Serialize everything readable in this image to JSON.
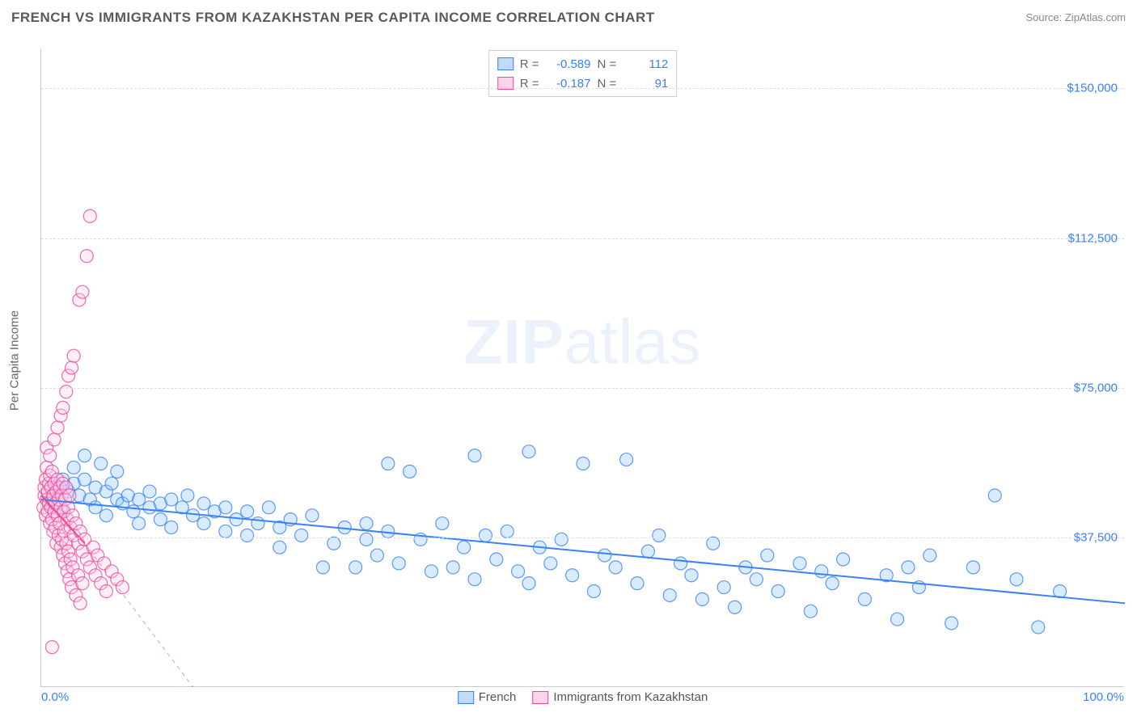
{
  "title": "FRENCH VS IMMIGRANTS FROM KAZAKHSTAN PER CAPITA INCOME CORRELATION CHART",
  "source": "Source: ZipAtlas.com",
  "ylabel": "Per Capita Income",
  "watermark_bold": "ZIP",
  "watermark_light": "atlas",
  "chart": {
    "type": "scatter",
    "xlim": [
      0,
      100
    ],
    "ylim": [
      0,
      160000
    ],
    "x_ticks": [
      {
        "v": 0,
        "label": "0.0%"
      },
      {
        "v": 100,
        "label": "100.0%"
      }
    ],
    "y_ticks": [
      {
        "v": 37500,
        "label": "$37,500"
      },
      {
        "v": 75000,
        "label": "$75,000"
      },
      {
        "v": 112500,
        "label": "$112,500"
      },
      {
        "v": 150000,
        "label": "$150,000"
      }
    ],
    "grid_color": "#dddddd",
    "axis_color": "#cccccc",
    "background_color": "#ffffff",
    "marker_radius": 8,
    "marker_opacity": 0.35,
    "series": [
      {
        "name": "French",
        "R": "-0.589",
        "N": "112",
        "fill": "#93c5fd",
        "stroke": "#3b82f6",
        "regression": {
          "x1": 0,
          "y1": 47000,
          "x2": 100,
          "y2": 21000,
          "width": 2,
          "dash": ""
        },
        "points": [
          [
            1,
            48000
          ],
          [
            1.5,
            50000
          ],
          [
            2,
            52000
          ],
          [
            2,
            44000
          ],
          [
            2.5,
            49000
          ],
          [
            3,
            51000
          ],
          [
            3,
            55000
          ],
          [
            3.5,
            48000
          ],
          [
            4,
            58000
          ],
          [
            4,
            52000
          ],
          [
            4.5,
            47000
          ],
          [
            5,
            50000
          ],
          [
            5,
            45000
          ],
          [
            5.5,
            56000
          ],
          [
            6,
            49000
          ],
          [
            6,
            43000
          ],
          [
            6.5,
            51000
          ],
          [
            7,
            47000
          ],
          [
            7,
            54000
          ],
          [
            7.5,
            46000
          ],
          [
            8,
            48000
          ],
          [
            8.5,
            44000
          ],
          [
            9,
            47000
          ],
          [
            9,
            41000
          ],
          [
            10,
            49000
          ],
          [
            10,
            45000
          ],
          [
            11,
            46000
          ],
          [
            11,
            42000
          ],
          [
            12,
            47000
          ],
          [
            12,
            40000
          ],
          [
            13,
            45000
          ],
          [
            13.5,
            48000
          ],
          [
            14,
            43000
          ],
          [
            15,
            46000
          ],
          [
            15,
            41000
          ],
          [
            16,
            44000
          ],
          [
            17,
            45000
          ],
          [
            17,
            39000
          ],
          [
            18,
            42000
          ],
          [
            19,
            44000
          ],
          [
            19,
            38000
          ],
          [
            20,
            41000
          ],
          [
            21,
            45000
          ],
          [
            22,
            40000
          ],
          [
            22,
            35000
          ],
          [
            23,
            42000
          ],
          [
            24,
            38000
          ],
          [
            25,
            43000
          ],
          [
            26,
            30000
          ],
          [
            27,
            36000
          ],
          [
            28,
            40000
          ],
          [
            29,
            30000
          ],
          [
            30,
            41000
          ],
          [
            30,
            37000
          ],
          [
            31,
            33000
          ],
          [
            32,
            56000
          ],
          [
            32,
            39000
          ],
          [
            33,
            31000
          ],
          [
            34,
            54000
          ],
          [
            35,
            37000
          ],
          [
            36,
            29000
          ],
          [
            37,
            41000
          ],
          [
            38,
            30000
          ],
          [
            39,
            35000
          ],
          [
            40,
            58000
          ],
          [
            40,
            27000
          ],
          [
            41,
            38000
          ],
          [
            42,
            32000
          ],
          [
            43,
            39000
          ],
          [
            44,
            29000
          ],
          [
            45,
            59000
          ],
          [
            45,
            26000
          ],
          [
            46,
            35000
          ],
          [
            47,
            31000
          ],
          [
            48,
            37000
          ],
          [
            49,
            28000
          ],
          [
            50,
            56000
          ],
          [
            51,
            24000
          ],
          [
            52,
            33000
          ],
          [
            53,
            30000
          ],
          [
            54,
            57000
          ],
          [
            55,
            26000
          ],
          [
            56,
            34000
          ],
          [
            57,
            38000
          ],
          [
            58,
            23000
          ],
          [
            59,
            31000
          ],
          [
            60,
            28000
          ],
          [
            61,
            22000
          ],
          [
            62,
            36000
          ],
          [
            63,
            25000
          ],
          [
            64,
            20000
          ],
          [
            65,
            30000
          ],
          [
            66,
            27000
          ],
          [
            67,
            33000
          ],
          [
            68,
            24000
          ],
          [
            70,
            31000
          ],
          [
            71,
            19000
          ],
          [
            72,
            29000
          ],
          [
            73,
            26000
          ],
          [
            74,
            32000
          ],
          [
            76,
            22000
          ],
          [
            78,
            28000
          ],
          [
            79,
            17000
          ],
          [
            80,
            30000
          ],
          [
            81,
            25000
          ],
          [
            82,
            33000
          ],
          [
            84,
            16000
          ],
          [
            86,
            30000
          ],
          [
            88,
            48000
          ],
          [
            90,
            27000
          ],
          [
            92,
            15000
          ],
          [
            94,
            24000
          ]
        ]
      },
      {
        "name": "Immigrants from Kazakhstan",
        "R": "-0.187",
        "N": "91",
        "fill": "#fbcfe8",
        "stroke": "#ec4899",
        "regression_solid": {
          "x1": 0,
          "y1": 48000,
          "x2": 4,
          "y2": 36000,
          "width": 2
        },
        "regression_dash": {
          "x1": 4,
          "y1": 36000,
          "x2": 14,
          "y2": 0,
          "width": 1
        },
        "points": [
          [
            0.2,
            45000
          ],
          [
            0.3,
            48000
          ],
          [
            0.3,
            50000
          ],
          [
            0.4,
            52000
          ],
          [
            0.4,
            43000
          ],
          [
            0.5,
            55000
          ],
          [
            0.5,
            47000
          ],
          [
            0.5,
            60000
          ],
          [
            0.6,
            44000
          ],
          [
            0.6,
            49000
          ],
          [
            0.7,
            51000
          ],
          [
            0.7,
            46000
          ],
          [
            0.8,
            53000
          ],
          [
            0.8,
            41000
          ],
          [
            0.8,
            58000
          ],
          [
            0.9,
            45000
          ],
          [
            0.9,
            50000
          ],
          [
            1.0,
            47000
          ],
          [
            1.0,
            42000
          ],
          [
            1.0,
            54000
          ],
          [
            1.1,
            48000
          ],
          [
            1.1,
            39000
          ],
          [
            1.2,
            51000
          ],
          [
            1.2,
            44000
          ],
          [
            1.2,
            62000
          ],
          [
            1.3,
            46000
          ],
          [
            1.3,
            40000
          ],
          [
            1.4,
            49000
          ],
          [
            1.4,
            36000
          ],
          [
            1.5,
            52000
          ],
          [
            1.5,
            43000
          ],
          [
            1.5,
            65000
          ],
          [
            1.6,
            47000
          ],
          [
            1.6,
            38000
          ],
          [
            1.7,
            50000
          ],
          [
            1.7,
            41000
          ],
          [
            1.8,
            45000
          ],
          [
            1.8,
            35000
          ],
          [
            1.8,
            68000
          ],
          [
            1.9,
            48000
          ],
          [
            1.9,
            37000
          ],
          [
            2.0,
            51000
          ],
          [
            2.0,
            33000
          ],
          [
            2.0,
            70000
          ],
          [
            2.1,
            44000
          ],
          [
            2.1,
            39000
          ],
          [
            2.2,
            47000
          ],
          [
            2.2,
            31000
          ],
          [
            2.3,
            50000
          ],
          [
            2.3,
            36000
          ],
          [
            2.3,
            74000
          ],
          [
            2.4,
            42000
          ],
          [
            2.4,
            29000
          ],
          [
            2.5,
            45000
          ],
          [
            2.5,
            34000
          ],
          [
            2.5,
            78000
          ],
          [
            2.6,
            48000
          ],
          [
            2.6,
            27000
          ],
          [
            2.7,
            40000
          ],
          [
            2.7,
            32000
          ],
          [
            2.8,
            80000
          ],
          [
            2.8,
            25000
          ],
          [
            2.9,
            43000
          ],
          [
            2.9,
            30000
          ],
          [
            3.0,
            38000
          ],
          [
            3.0,
            83000
          ],
          [
            3.2,
            41000
          ],
          [
            3.2,
            23000
          ],
          [
            3.4,
            36000
          ],
          [
            3.4,
            28000
          ],
          [
            3.5,
            97000
          ],
          [
            3.6,
            39000
          ],
          [
            3.6,
            21000
          ],
          [
            3.8,
            34000
          ],
          [
            3.8,
            26000
          ],
          [
            3.8,
            99000
          ],
          [
            4.0,
            37000
          ],
          [
            4.2,
            32000
          ],
          [
            4.2,
            108000
          ],
          [
            4.5,
            30000
          ],
          [
            4.5,
            118000
          ],
          [
            4.8,
            35000
          ],
          [
            5.0,
            28000
          ],
          [
            5.2,
            33000
          ],
          [
            5.5,
            26000
          ],
          [
            5.8,
            31000
          ],
          [
            6.0,
            24000
          ],
          [
            6.5,
            29000
          ],
          [
            7.0,
            27000
          ],
          [
            7.5,
            25000
          ],
          [
            1.0,
            10000
          ]
        ]
      }
    ],
    "bottom_legend": [
      {
        "swatch": "blue",
        "label": "French"
      },
      {
        "swatch": "pink",
        "label": "Immigrants from Kazakhstan"
      }
    ]
  }
}
